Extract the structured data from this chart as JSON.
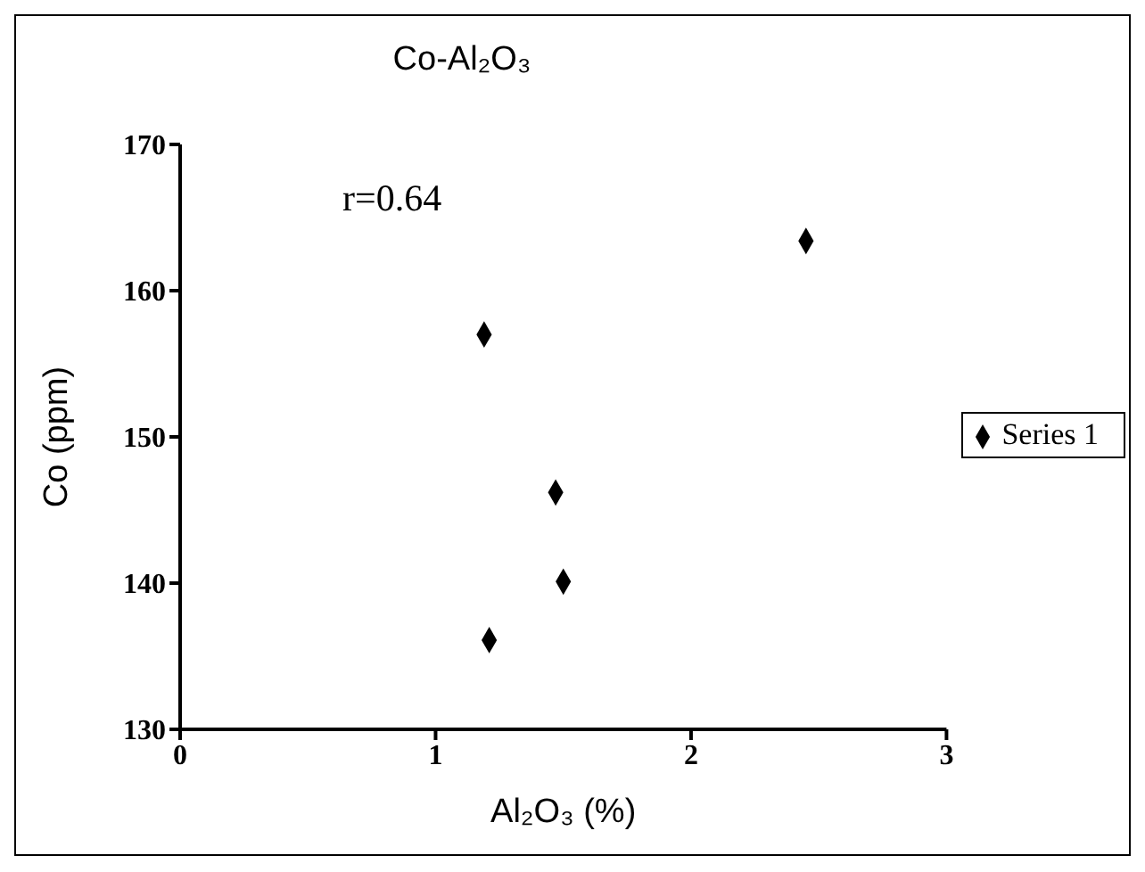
{
  "chart_data": {
    "type": "scatter",
    "title": "Co-Al₂O₃",
    "xlabel": "Al₂O₃ (%)",
    "ylabel": "Co (ppm)",
    "x": [
      1.19,
      2.45,
      1.47,
      1.5,
      1.21
    ],
    "series": [
      {
        "name": "Series 1",
        "color": "#000000",
        "values": [
          157,
          163.4,
          146.2,
          140.1,
          136.1
        ]
      }
    ],
    "xlim": [
      0,
      3
    ],
    "xticks": [
      0,
      1,
      2,
      3
    ],
    "ylim": [
      130,
      170
    ],
    "yticks": [
      130,
      140,
      150,
      160,
      170
    ],
    "annotations": [
      "r=0.64"
    ],
    "legend": "right",
    "marker": "diamond",
    "grid": false
  }
}
